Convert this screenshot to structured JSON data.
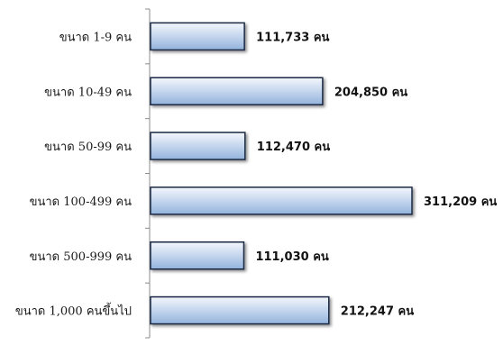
{
  "chart_data": {
    "type": "bar",
    "orientation": "horizontal",
    "categories": [
      "ขนาด 1-9 คน",
      "ขนาด 10-49 คน",
      "ขนาด 50-99 คน",
      "ขนาด 100-499 คน",
      "ขนาด 500-999 คน",
      "ขนาด 1,000 คนขึ้นไป"
    ],
    "values": [
      111733,
      204850,
      112470,
      311209,
      111030,
      212247
    ],
    "data_labels": [
      "111,733 คน",
      "204,850 คน",
      "112,470 คน",
      "311,209 คน",
      "111,030 คน",
      "212,247 คน"
    ],
    "xlim": [
      0,
      311209
    ],
    "grid": false,
    "legend": "none",
    "colors": {
      "bar_light": "#f4f7fc",
      "bar_mid": "#c9d9ef",
      "bar_dark": "#93b3dc",
      "bar_edge": "#1c2a44",
      "axis": "#8c8c8c"
    }
  }
}
